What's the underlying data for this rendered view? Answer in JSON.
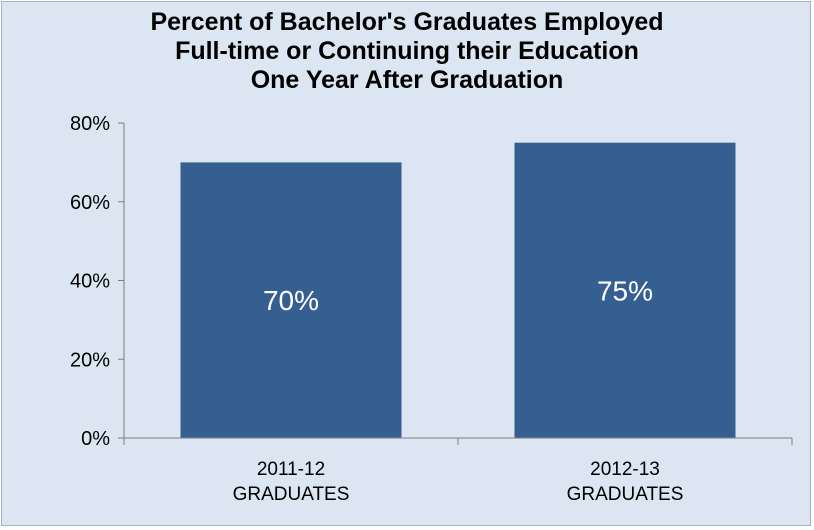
{
  "chart_data": {
    "type": "bar",
    "title_lines": [
      "Percent of Bachelor's Graduates Employed",
      "Full-time or Continuing their Education",
      "One Year After Graduation"
    ],
    "categories": [
      [
        "2011-12",
        "GRADUATES"
      ],
      [
        "2012-13",
        "GRADUATES"
      ]
    ],
    "values": [
      70,
      75
    ],
    "data_labels": [
      "70%",
      "75%"
    ],
    "y_ticks": [
      "0%",
      "20%",
      "40%",
      "60%",
      "80%"
    ],
    "y_tick_values": [
      0,
      20,
      40,
      60,
      80
    ],
    "ylim": [
      0,
      80
    ],
    "xlabel": "",
    "ylabel": "",
    "grid": false,
    "legend": "none",
    "colors": {
      "bar": "#365f91",
      "background": "#dce6f2",
      "axis": "#7f7f7f"
    }
  }
}
